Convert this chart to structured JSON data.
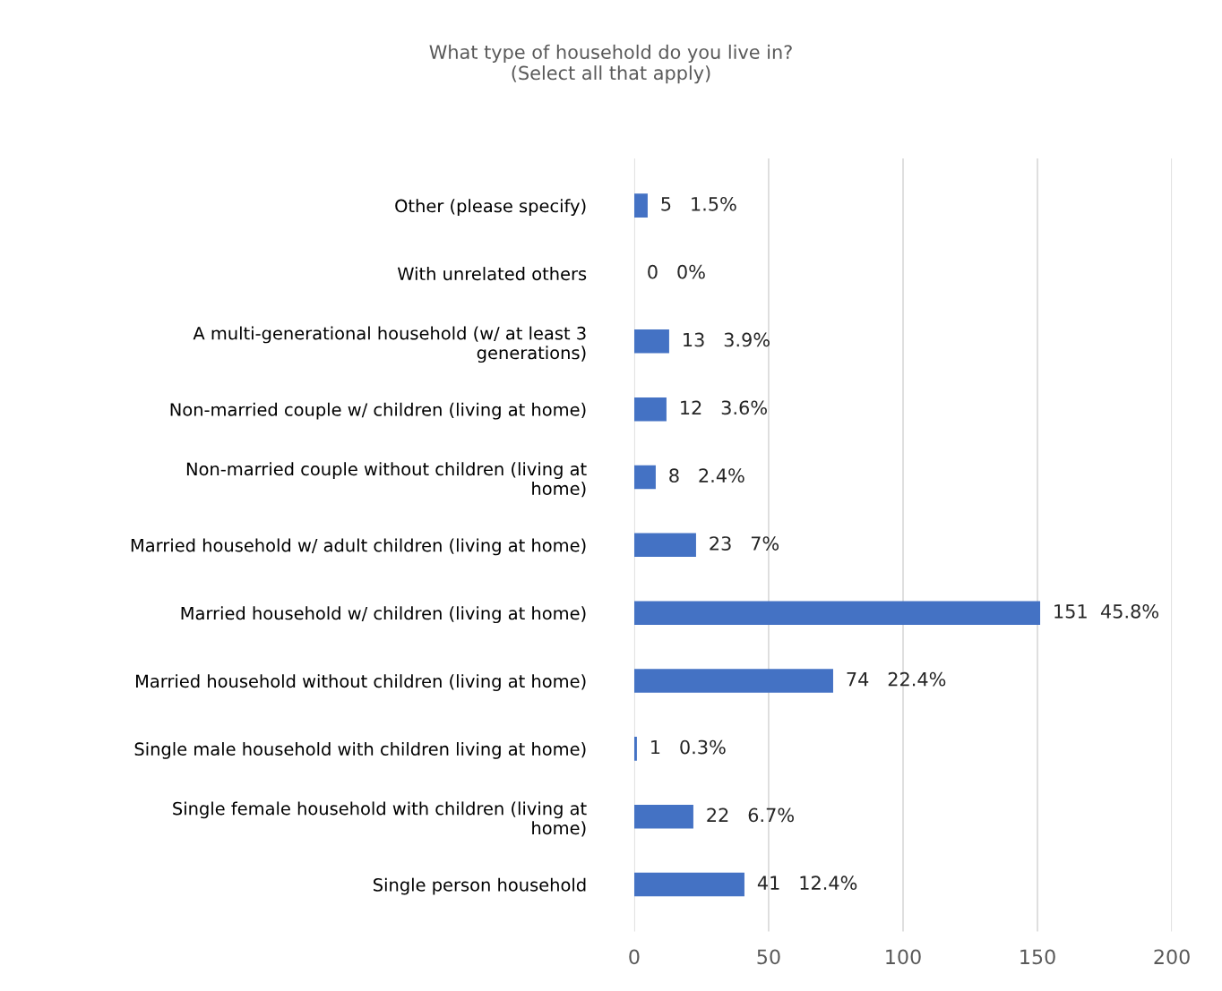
{
  "chart_data": {
    "type": "bar",
    "orientation": "horizontal",
    "title": "What type of household do you live in?\n(Select all that apply)",
    "categories": [
      "Other (please specify)",
      "With unrelated others",
      "A multi-generational household (w/ at least 3\ngenerations)",
      "Non-married couple w/ children (living at home)",
      "Non-married couple without children (living at\nhome)",
      "Married household w/ adult children (living at home)",
      "Married household w/ children (living at home)",
      "Married household without children (living at home)",
      "Single male household with children living at home)",
      "Single female household with children (living at\nhome)",
      "Single person household"
    ],
    "values": [
      5,
      0,
      13,
      12,
      8,
      23,
      151,
      74,
      1,
      22,
      41
    ],
    "color": "#4472c4",
    "value_labels": [
      "5   1.5%",
      "0   0%",
      "13   3.9%",
      "12   3.6%",
      "8   2.4%",
      "23   7%",
      "151  45.8%",
      "74   22.4%",
      "1   0.3%",
      "22   6.7%",
      "41   12.4%"
    ],
    "xlim": [
      0,
      200
    ],
    "xticks": [
      0,
      50,
      100,
      150,
      200
    ],
    "grid": "x",
    "legend": false
  }
}
